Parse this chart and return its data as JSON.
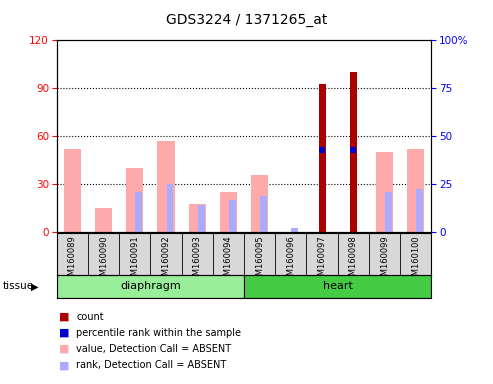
{
  "title": "GDS3224 / 1371265_at",
  "samples": [
    "GSM160089",
    "GSM160090",
    "GSM160091",
    "GSM160092",
    "GSM160093",
    "GSM160094",
    "GSM160095",
    "GSM160096",
    "GSM160097",
    "GSM160098",
    "GSM160099",
    "GSM160100"
  ],
  "groups": [
    "diaphragm",
    "diaphragm",
    "diaphragm",
    "diaphragm",
    "diaphragm",
    "diaphragm",
    "heart",
    "heart",
    "heart",
    "heart",
    "heart",
    "heart"
  ],
  "value_absent": [
    52,
    15,
    40,
    57,
    18,
    25,
    36,
    0,
    0,
    0,
    50,
    52
  ],
  "rank_absent": [
    0,
    0,
    25,
    30,
    17,
    20,
    23,
    3,
    0,
    0,
    25,
    27
  ],
  "count": [
    0,
    0,
    0,
    0,
    0,
    0,
    0,
    0,
    93,
    100,
    0,
    0
  ],
  "percentile_rank": [
    0,
    0,
    0,
    0,
    0,
    0,
    0,
    0,
    43,
    43,
    0,
    0
  ],
  "left_ylim": [
    0,
    120
  ],
  "right_ylim": [
    0,
    100
  ],
  "left_yticks": [
    0,
    30,
    60,
    90,
    120
  ],
  "right_yticks": [
    0,
    25,
    50,
    75,
    100
  ],
  "color_count": "#aa0000",
  "color_percentile": "#0000cc",
  "color_value_absent": "#ffaaaa",
  "color_rank_absent": "#aaaaff",
  "group_diaphragm_color": "#99ee99",
  "group_heart_color": "#44cc44",
  "bg_color": "#d8d8d8"
}
